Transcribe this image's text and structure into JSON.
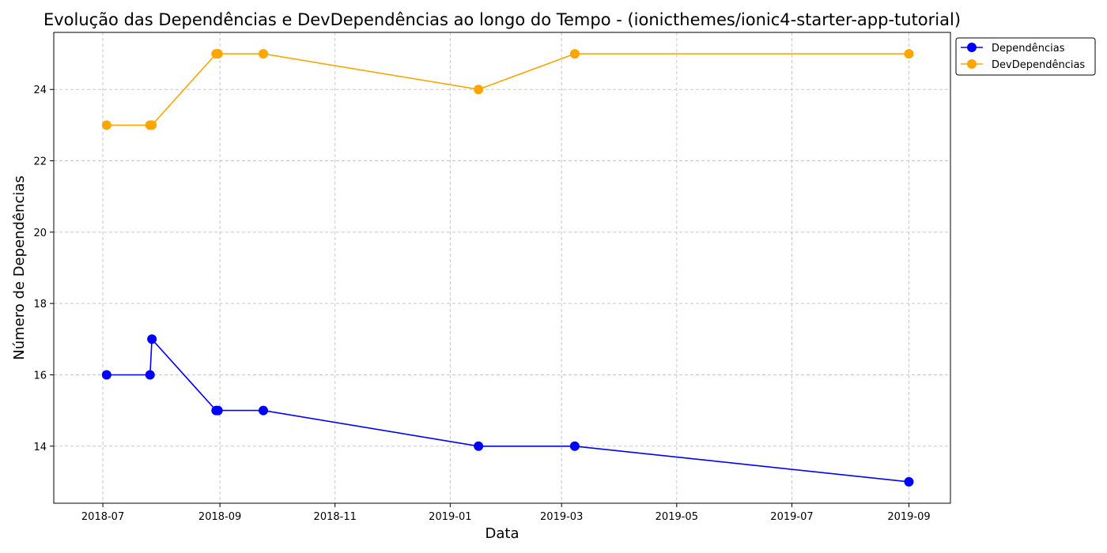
{
  "chart_data": {
    "type": "line",
    "title": "Evolução das Dependências e DevDependências ao longo do Tempo - (ionicthemes/ionic4-starter-app-tutorial)",
    "xlabel": "Data",
    "ylabel": "Número de Dependências",
    "x_ticks": [
      "2018-07",
      "2018-09",
      "2018-11",
      "2019-01",
      "2019-03",
      "2019-05",
      "2019-07",
      "2019-09"
    ],
    "x_tick_dates": [
      "2018-07-01",
      "2018-09-01",
      "2018-11-01",
      "2019-01-01",
      "2019-03-01",
      "2019-05-01",
      "2019-07-01",
      "2019-09-01"
    ],
    "xlim": [
      "2018-06-05",
      "2019-09-23"
    ],
    "y_ticks": [
      14,
      16,
      18,
      20,
      22,
      24
    ],
    "ylim": [
      12.4,
      25.6
    ],
    "grid": true,
    "legend_position": "top-right",
    "series": [
      {
        "name": "Dependências",
        "color": "#0000ff",
        "x": [
          "2018-07-03",
          "2018-07-26",
          "2018-07-27",
          "2018-08-30",
          "2018-08-31",
          "2018-09-24",
          "2019-01-16",
          "2019-03-08",
          "2019-09-01"
        ],
        "values": [
          16,
          16,
          17,
          15,
          15,
          15,
          14,
          14,
          13
        ]
      },
      {
        "name": "DevDependências",
        "color": "#ffa500",
        "x": [
          "2018-07-03",
          "2018-07-26",
          "2018-07-27",
          "2018-08-30",
          "2018-08-31",
          "2018-09-24",
          "2019-01-16",
          "2019-03-08",
          "2019-09-01"
        ],
        "values": [
          23,
          23,
          23,
          25,
          25,
          25,
          24,
          25,
          25
        ]
      }
    ]
  }
}
